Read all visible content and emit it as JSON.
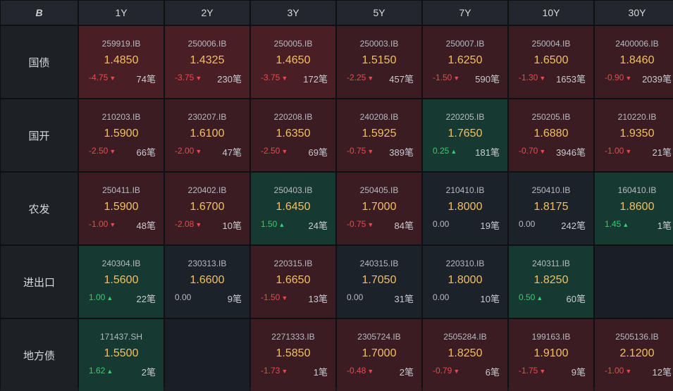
{
  "logo_text": "B",
  "columns": [
    "1Y",
    "2Y",
    "3Y",
    "5Y",
    "7Y",
    "10Y",
    "30Y"
  ],
  "colors": {
    "up": "#2fcf75",
    "down": "#f0474e",
    "yield": "#f2c063",
    "red_bg": "#3a1c22",
    "green_bg": "#163a31",
    "neutral_bg": "#1b222a"
  },
  "rows": [
    {
      "label": "国债",
      "cells": [
        {
          "code": "259919.IB",
          "yield": "1.4850",
          "change": "-4.75",
          "dir": "down",
          "count": "74笔",
          "tone": "red hot"
        },
        {
          "code": "250006.IB",
          "yield": "1.4325",
          "change": "-3.75",
          "dir": "down",
          "count": "230笔",
          "tone": "red hot"
        },
        {
          "code": "250005.IB",
          "yield": "1.4650",
          "change": "-3.75",
          "dir": "down",
          "count": "172笔",
          "tone": "red hot"
        },
        {
          "code": "250003.IB",
          "yield": "1.5150",
          "change": "-2.25",
          "dir": "down",
          "count": "457笔",
          "tone": "red"
        },
        {
          "code": "250007.IB",
          "yield": "1.6250",
          "change": "-1.50",
          "dir": "down",
          "count": "590笔",
          "tone": "red"
        },
        {
          "code": "250004.IB",
          "yield": "1.6500",
          "change": "-1.30",
          "dir": "down",
          "count": "1653笔",
          "tone": "red"
        },
        {
          "code": "2400006.IB",
          "yield": "1.8460",
          "change": "-0.90",
          "dir": "down",
          "count": "2039笔",
          "tone": "red"
        }
      ]
    },
    {
      "label": "国开",
      "cells": [
        {
          "code": "210203.IB",
          "yield": "1.5900",
          "change": "-2.50",
          "dir": "down",
          "count": "66笔",
          "tone": "red"
        },
        {
          "code": "230207.IB",
          "yield": "1.6100",
          "change": "-2.00",
          "dir": "down",
          "count": "47笔",
          "tone": "red"
        },
        {
          "code": "220208.IB",
          "yield": "1.6350",
          "change": "-2.50",
          "dir": "down",
          "count": "69笔",
          "tone": "red"
        },
        {
          "code": "240208.IB",
          "yield": "1.5925",
          "change": "-0.75",
          "dir": "down",
          "count": "389笔",
          "tone": "red"
        },
        {
          "code": "220205.IB",
          "yield": "1.7650",
          "change": "0.25",
          "dir": "up",
          "count": "181笔",
          "tone": "green"
        },
        {
          "code": "250205.IB",
          "yield": "1.6880",
          "change": "-0.70",
          "dir": "down",
          "count": "3946笔",
          "tone": "red"
        },
        {
          "code": "210220.IB",
          "yield": "1.9350",
          "change": "-1.00",
          "dir": "down",
          "count": "21笔",
          "tone": "red"
        }
      ]
    },
    {
      "label": "农发",
      "cells": [
        {
          "code": "250411.IB",
          "yield": "1.5900",
          "change": "-1.00",
          "dir": "down",
          "count": "48笔",
          "tone": "red"
        },
        {
          "code": "220402.IB",
          "yield": "1.6700",
          "change": "-2.08",
          "dir": "down",
          "count": "10笔",
          "tone": "red"
        },
        {
          "code": "250403.IB",
          "yield": "1.6450",
          "change": "1.50",
          "dir": "up",
          "count": "24笔",
          "tone": "green"
        },
        {
          "code": "250405.IB",
          "yield": "1.7000",
          "change": "-0.75",
          "dir": "down",
          "count": "84笔",
          "tone": "red"
        },
        {
          "code": "210410.IB",
          "yield": "1.8000",
          "change": "0.00",
          "dir": "flat",
          "count": "19笔",
          "tone": "neutral"
        },
        {
          "code": "250410.IB",
          "yield": "1.8175",
          "change": "0.00",
          "dir": "flat",
          "count": "242笔",
          "tone": "neutral"
        },
        {
          "code": "160410.IB",
          "yield": "1.8600",
          "change": "1.45",
          "dir": "up",
          "count": "1笔",
          "tone": "green"
        }
      ]
    },
    {
      "label": "进出口",
      "cells": [
        {
          "code": "240304.IB",
          "yield": "1.5600",
          "change": "1.00",
          "dir": "up",
          "count": "22笔",
          "tone": "green"
        },
        {
          "code": "230313.IB",
          "yield": "1.6600",
          "change": "0.00",
          "dir": "flat",
          "count": "9笔",
          "tone": "neutral"
        },
        {
          "code": "220315.IB",
          "yield": "1.6650",
          "change": "-1.50",
          "dir": "down",
          "count": "13笔",
          "tone": "red"
        },
        {
          "code": "240315.IB",
          "yield": "1.7050",
          "change": "0.00",
          "dir": "flat",
          "count": "31笔",
          "tone": "neutral"
        },
        {
          "code": "220310.IB",
          "yield": "1.8000",
          "change": "0.00",
          "dir": "flat",
          "count": "10笔",
          "tone": "neutral"
        },
        {
          "code": "240311.IB",
          "yield": "1.8250",
          "change": "0.50",
          "dir": "up",
          "count": "60笔",
          "tone": "green"
        },
        null
      ]
    },
    {
      "label": "地方债",
      "cells": [
        {
          "code": "171437.SH",
          "yield": "1.5500",
          "change": "1.62",
          "dir": "up",
          "count": "2笔",
          "tone": "green"
        },
        null,
        {
          "code": "2271333.IB",
          "yield": "1.5850",
          "change": "-1.73",
          "dir": "down",
          "count": "1笔",
          "tone": "red"
        },
        {
          "code": "2305724.IB",
          "yield": "1.7000",
          "change": "-0.48",
          "dir": "down",
          "count": "2笔",
          "tone": "red"
        },
        {
          "code": "2505284.IB",
          "yield": "1.8250",
          "change": "-0.79",
          "dir": "down",
          "count": "6笔",
          "tone": "red"
        },
        {
          "code": "199163.IB",
          "yield": "1.9100",
          "change": "-1.75",
          "dir": "down",
          "count": "9笔",
          "tone": "red"
        },
        {
          "code": "2505136.IB",
          "yield": "2.1200",
          "change": "-1.00",
          "dir": "down",
          "count": "12笔",
          "tone": "red"
        }
      ]
    }
  ]
}
